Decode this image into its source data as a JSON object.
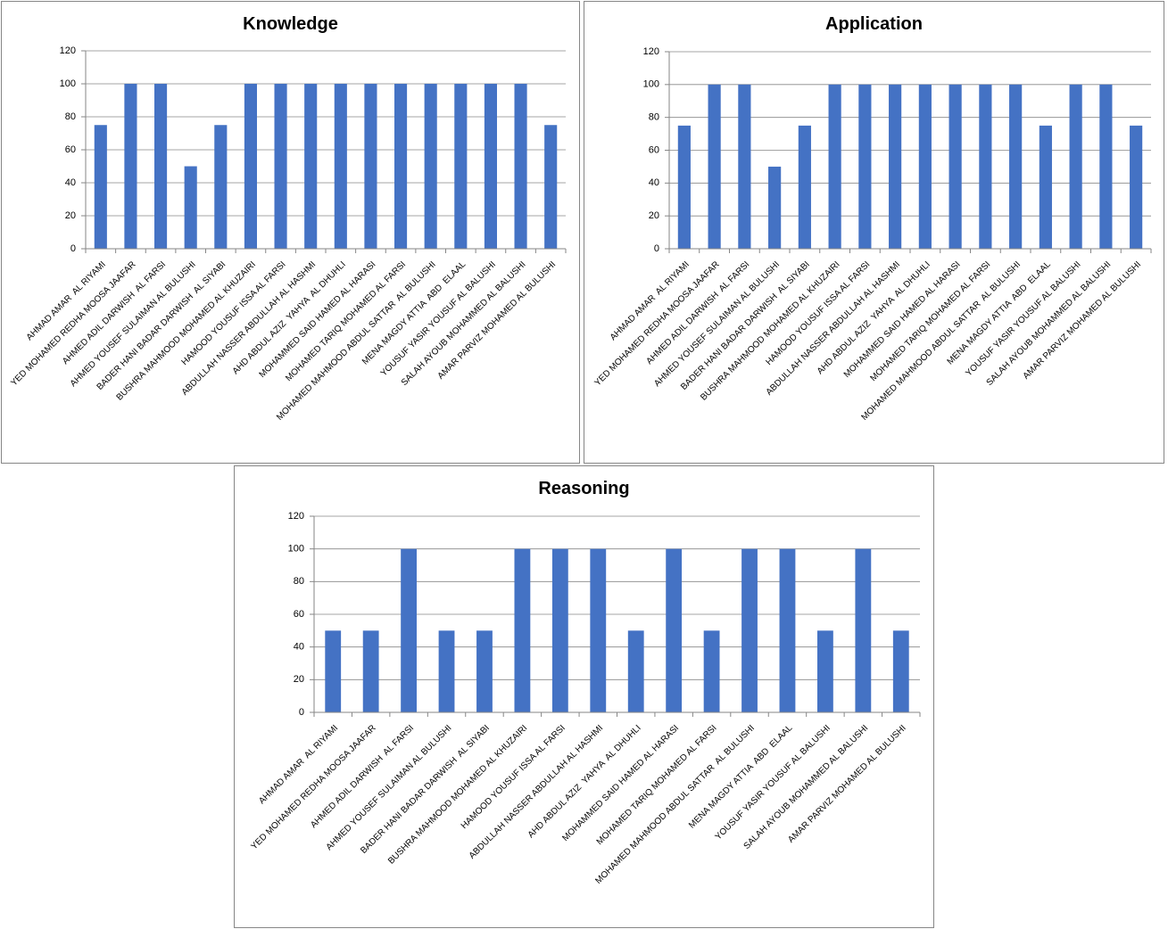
{
  "chart_data": [
    {
      "type": "bar",
      "title": "Knowledge",
      "categories": [
        "AHMAD AMAR  AL RIYAMI",
        "YED MOHAMED REDHA MOOSA JAAFAR",
        "AHMED ADIL DARWISH  AL FARSI",
        "AHMED YOUSEF SULAIMAN AL BULUSHI",
        "BADER HANI BADAR DARWISH  AL SIYABI",
        "BUSHRA MAHMOOD MOHAMED AL KHUZAIRI",
        "HAMOOD YOUSUF ISSA AL FARSI",
        "ABDULLAH NASSER ABDULLAH AL HASHMI",
        "AHD ABDUL AZIZ  YAHYA  AL DHUHLI",
        "MOHAMMED SAID HAMED AL HARASI",
        "MOHAMED TARIQ MOHAMED AL FARSI",
        "MOHAMED MAHMOOD ABDUL SATTAR  AL BULUSHI",
        "MENA MAGDY ATTIA  ABD  ELAAL",
        "YOUSUF YASIR YOUSUF AL BALUSHI",
        "SALAH AYOUB MOHAMMED AL BALUSHI",
        "AMAR PARVIZ MOHAMED AL BULUSHI"
      ],
      "values": [
        75,
        100,
        100,
        50,
        75,
        100,
        100,
        100,
        100,
        100,
        100,
        100,
        100,
        100,
        100,
        75
      ],
      "color": "#4472c4",
      "ylim": [
        0,
        120
      ],
      "yticks": [
        0,
        20,
        40,
        60,
        80,
        100,
        120
      ],
      "grid": true
    },
    {
      "type": "bar",
      "title": "Application",
      "categories": [
        "AHMAD AMAR  AL RIYAMI",
        "YED MOHAMED REDHA MOOSA JAAFAR",
        "AHMED ADIL DARWISH  AL FARSI",
        "AHMED YOUSEF SULAIMAN AL BULUSHI",
        "BADER HANI BADAR DARWISH  AL SIYABI",
        "BUSHRA MAHMOOD MOHAMED AL KHUZAIRI",
        "HAMOOD YOUSUF ISSA AL FARSI",
        "ABDULLAH NASSER ABDULLAH AL HASHMI",
        "AHD ABDUL AZIZ  YAHYA  AL DHUHLI",
        "MOHAMMED SAID HAMED AL HARASI",
        "MOHAMED TARIQ MOHAMED AL FARSI",
        "MOHAMED MAHMOOD ABDUL SATTAR  AL BULUSHI",
        "MENA MAGDY ATTIA  ABD  ELAAL",
        "YOUSUF YASIR YOUSUF AL BALUSHI",
        "SALAH AYOUB MOHAMMED AL BALUSHI",
        "AMAR PARVIZ MOHAMED AL BULUSHI"
      ],
      "values": [
        75,
        100,
        100,
        50,
        75,
        100,
        100,
        100,
        100,
        100,
        100,
        100,
        75,
        100,
        100,
        75
      ],
      "color": "#4472c4",
      "ylim": [
        0,
        120
      ],
      "yticks": [
        0,
        20,
        40,
        60,
        80,
        100,
        120
      ],
      "grid": true
    },
    {
      "type": "bar",
      "title": "Reasoning",
      "categories": [
        "AHMAD AMAR  AL RIYAMI",
        "YED MOHAMED REDHA MOOSA JAAFAR",
        "AHMED ADIL DARWISH  AL FARSI",
        "AHMED YOUSEF SULAIMAN AL BULUSHI",
        "BADER HANI BADAR DARWISH  AL SIYABI",
        "BUSHRA MAHMOOD MOHAMED AL KHUZAIRI",
        "HAMOOD YOUSUF ISSA AL FARSI",
        "ABDULLAH NASSER ABDULLAH AL HASHMI",
        "AHD ABDUL AZIZ  YAHYA  AL DHUHLI",
        "MOHAMMED SAID HAMED AL HARASI",
        "MOHAMED TARIQ MOHAMED AL FARSI",
        "MOHAMED MAHMOOD ABDUL SATTAR  AL BULUSHI",
        "MENA MAGDY ATTIA  ABD  ELAAL",
        "YOUSUF YASIR YOUSUF AL BALUSHI",
        "SALAH AYOUB MOHAMMED AL BALUSHI",
        "AMAR PARVIZ MOHAMED AL BULUSHI"
      ],
      "values": [
        50,
        50,
        100,
        50,
        50,
        100,
        100,
        100,
        50,
        100,
        50,
        100,
        100,
        50,
        100,
        50
      ],
      "color": "#4472c4",
      "ylim": [
        0,
        120
      ],
      "yticks": [
        0,
        20,
        40,
        60,
        80,
        100,
        120
      ],
      "grid": true
    }
  ]
}
